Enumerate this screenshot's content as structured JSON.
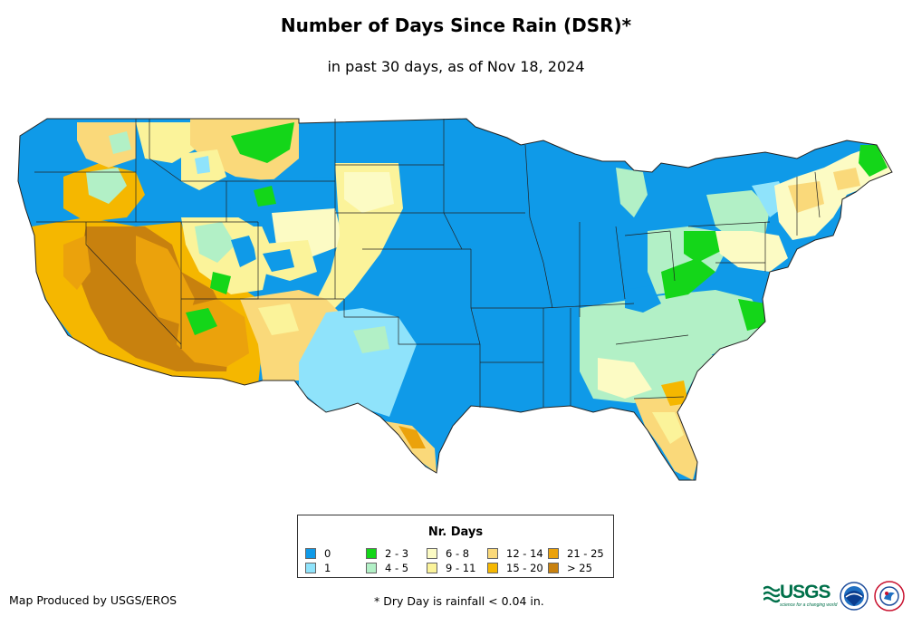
{
  "header": {
    "title": "Number of Days Since Rain (DSR)*",
    "subtitle": "in past 30 days, as of Nov 18, 2024"
  },
  "legend": {
    "title": "Nr. Days",
    "classes": [
      {
        "label": "0",
        "color": "#0f9ae8"
      },
      {
        "label": "1",
        "color": "#8fe3fb"
      },
      {
        "label": "2 - 3",
        "color": "#14d619"
      },
      {
        "label": "4 - 5",
        "color": "#b2f0c6"
      },
      {
        "label": "6 - 8",
        "color": "#fcfbc4"
      },
      {
        "label": "9 - 11",
        "color": "#fbf39a"
      },
      {
        "label": "12 - 14",
        "color": "#fad97a"
      },
      {
        "label": "15 - 20",
        "color": "#f5b700"
      },
      {
        "label": "21 - 25",
        "color": "#eba20c"
      },
      {
        "label": "> 25",
        "color": "#c8810e"
      }
    ]
  },
  "footer": {
    "credit": "Map Produced by USGS/EROS",
    "footnote": "* Dry Day is rainfall < 0.04 in.",
    "logo_text": "USGS",
    "logo_tagline": "science for a changing world",
    "logos": [
      "usgs-logo",
      "noaa-logo",
      "national-weather-service-logo"
    ]
  }
}
